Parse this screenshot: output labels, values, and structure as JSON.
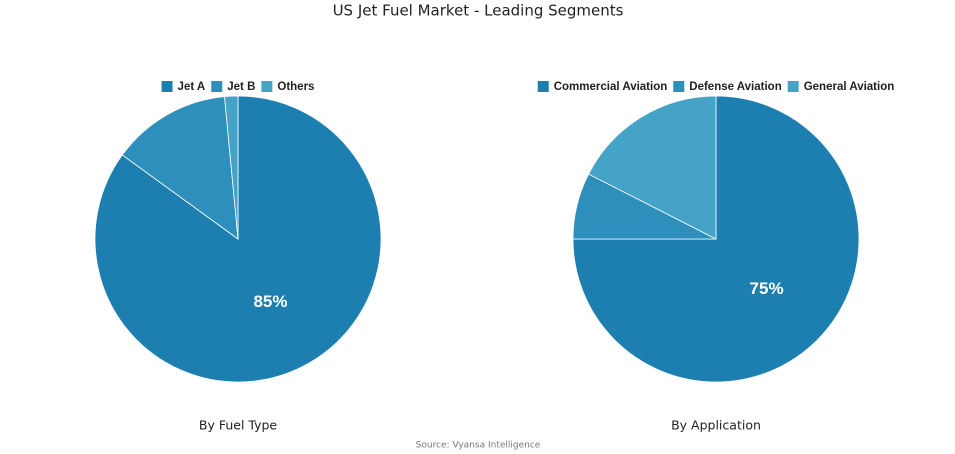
{
  "title": "US Jet Fuel Market - Leading Segments",
  "source": "Source: Vyansa Intelligence",
  "chart_data": [
    {
      "type": "pie",
      "caption": "By Fuel Type",
      "categories": [
        "Jet A",
        "Jet B",
        "Others"
      ],
      "values": [
        85,
        13.5,
        1.5
      ],
      "value_labels": [
        "85%",
        null,
        null
      ],
      "colors": [
        "#1c7fb0",
        "#2e8fbc",
        "#46a3c8"
      ]
    },
    {
      "type": "pie",
      "caption": "By Application",
      "categories": [
        "Commercial Aviation",
        "Defense Aviation",
        "General Aviation"
      ],
      "values": [
        75,
        7.5,
        17.5
      ],
      "value_labels": [
        "75%",
        null,
        null
      ],
      "colors": [
        "#1c7fb0",
        "#2e8fbc",
        "#46a3c8"
      ]
    }
  ]
}
